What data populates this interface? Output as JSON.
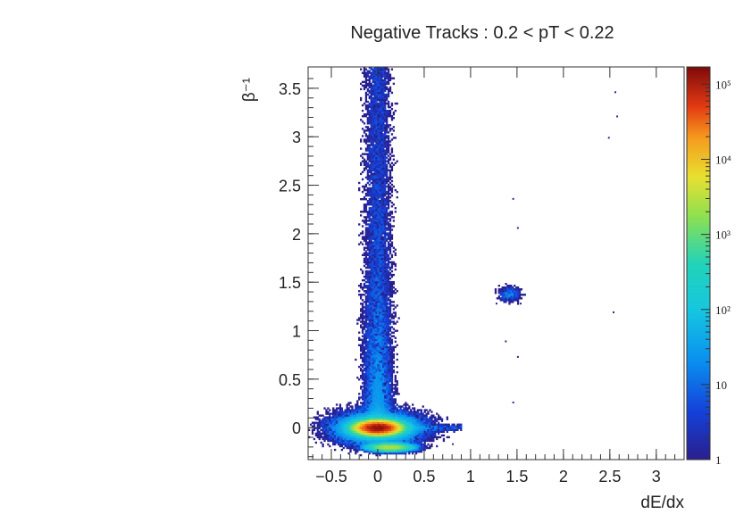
{
  "chart_data": {
    "type": "heatmap",
    "title": "Negative Tracks : 0.2 < pT < 0.22",
    "xlabel": "dE/dx",
    "ylabel": "β⁻¹",
    "xlim": [
      -0.75,
      3.3
    ],
    "ylim": [
      -0.33,
      3.72
    ],
    "x_ticks": [
      -0.5,
      0,
      0.5,
      1,
      1.5,
      2,
      2.5,
      3
    ],
    "x_tick_labels": [
      "−0.5",
      "0",
      "0.5",
      "1",
      "1.5",
      "2",
      "2.5",
      "3"
    ],
    "y_ticks": [
      0,
      0.5,
      1,
      1.5,
      2,
      2.5,
      3,
      3.5
    ],
    "y_tick_labels": [
      "0",
      "0.5",
      "1",
      "1.5",
      "2",
      "2.5",
      "3",
      "3.5"
    ],
    "z_scale": "log",
    "zlim": [
      1,
      170000
    ],
    "colorbar_ticks": [
      1,
      10,
      100,
      1000,
      10000,
      100000
    ],
    "colorbar_tick_labels": [
      "1",
      "10",
      "10²",
      "10³",
      "10⁴",
      "10⁵"
    ],
    "colormap": "rainbow",
    "colors": {
      "low": "#2a1f8c",
      "mid": "#22d3b8",
      "high": "#7d0a0a"
    },
    "clusters": [
      {
        "name": "main-peak",
        "x": 0.0,
        "y": 0.0,
        "peak": 150000
      },
      {
        "name": "secondary-peak",
        "x": 0.13,
        "y": -0.2,
        "peak": 3000
      },
      {
        "name": "horizontal-tail",
        "x": 0.5,
        "y": 0.0,
        "peak": 40
      },
      {
        "name": "vertical-band",
        "x": 0.0,
        "y": 1.8,
        "peak": 4
      },
      {
        "name": "right-blob",
        "x": 1.42,
        "y": 1.38,
        "peak": 3
      }
    ]
  }
}
